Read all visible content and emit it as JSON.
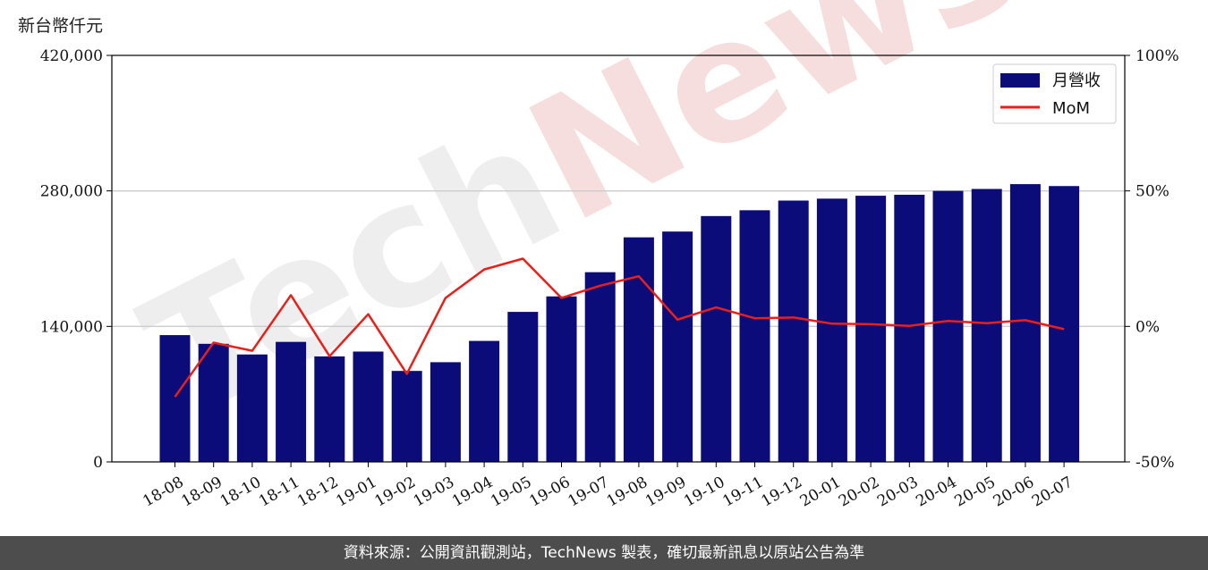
{
  "unit_label": "新台幣仟元",
  "footer_text": "資料來源：公開資訊觀測站，TechNews 製表，確切最新訊息以原站公告為準",
  "watermark_text": "TechNews",
  "colors": {
    "bar": "#0b0b7a",
    "line": "#e8201a",
    "grid": "#cccccc"
  },
  "chart_data": {
    "type": "bar",
    "categories": [
      "18-08",
      "18-09",
      "18-10",
      "18-11",
      "18-12",
      "19-01",
      "19-02",
      "19-03",
      "19-04",
      "19-05",
      "19-06",
      "19-07",
      "19-08",
      "19-09",
      "19-10",
      "19-11",
      "19-12",
      "20-01",
      "20-02",
      "20-03",
      "20-04",
      "20-05",
      "20-06",
      "20-07"
    ],
    "series": [
      {
        "name": "月營收",
        "type": "bar",
        "axis": "left",
        "values": [
          131000,
          122000,
          111000,
          124000,
          109000,
          114000,
          94000,
          103000,
          125000,
          155000,
          171000,
          196000,
          232000,
          238000,
          254000,
          260000,
          270000,
          272000,
          275000,
          276000,
          280000,
          282000,
          287000,
          285000
        ]
      },
      {
        "name": "MoM",
        "type": "line",
        "axis": "right",
        "values": [
          -26,
          -6,
          -9,
          11.5,
          -11,
          4.5,
          -17.5,
          10.5,
          21,
          25,
          10.5,
          15,
          18.5,
          2.5,
          7,
          3,
          3.3,
          1,
          0.8,
          0.2,
          2,
          1.2,
          2.3,
          -1
        ]
      }
    ],
    "y_left": {
      "lim": [
        0,
        420000
      ],
      "ticks": [
        0,
        140000,
        280000,
        420000
      ],
      "tick_labels": [
        "0",
        "140,000",
        "280,000",
        "420,000"
      ]
    },
    "y_right": {
      "lim": [
        -50,
        100
      ],
      "ticks": [
        -50,
        0,
        50,
        100
      ],
      "tick_labels": [
        "-50%",
        "0%",
        "50%",
        "100%"
      ]
    },
    "grid": "horizontal",
    "legend_position": "top-right"
  }
}
